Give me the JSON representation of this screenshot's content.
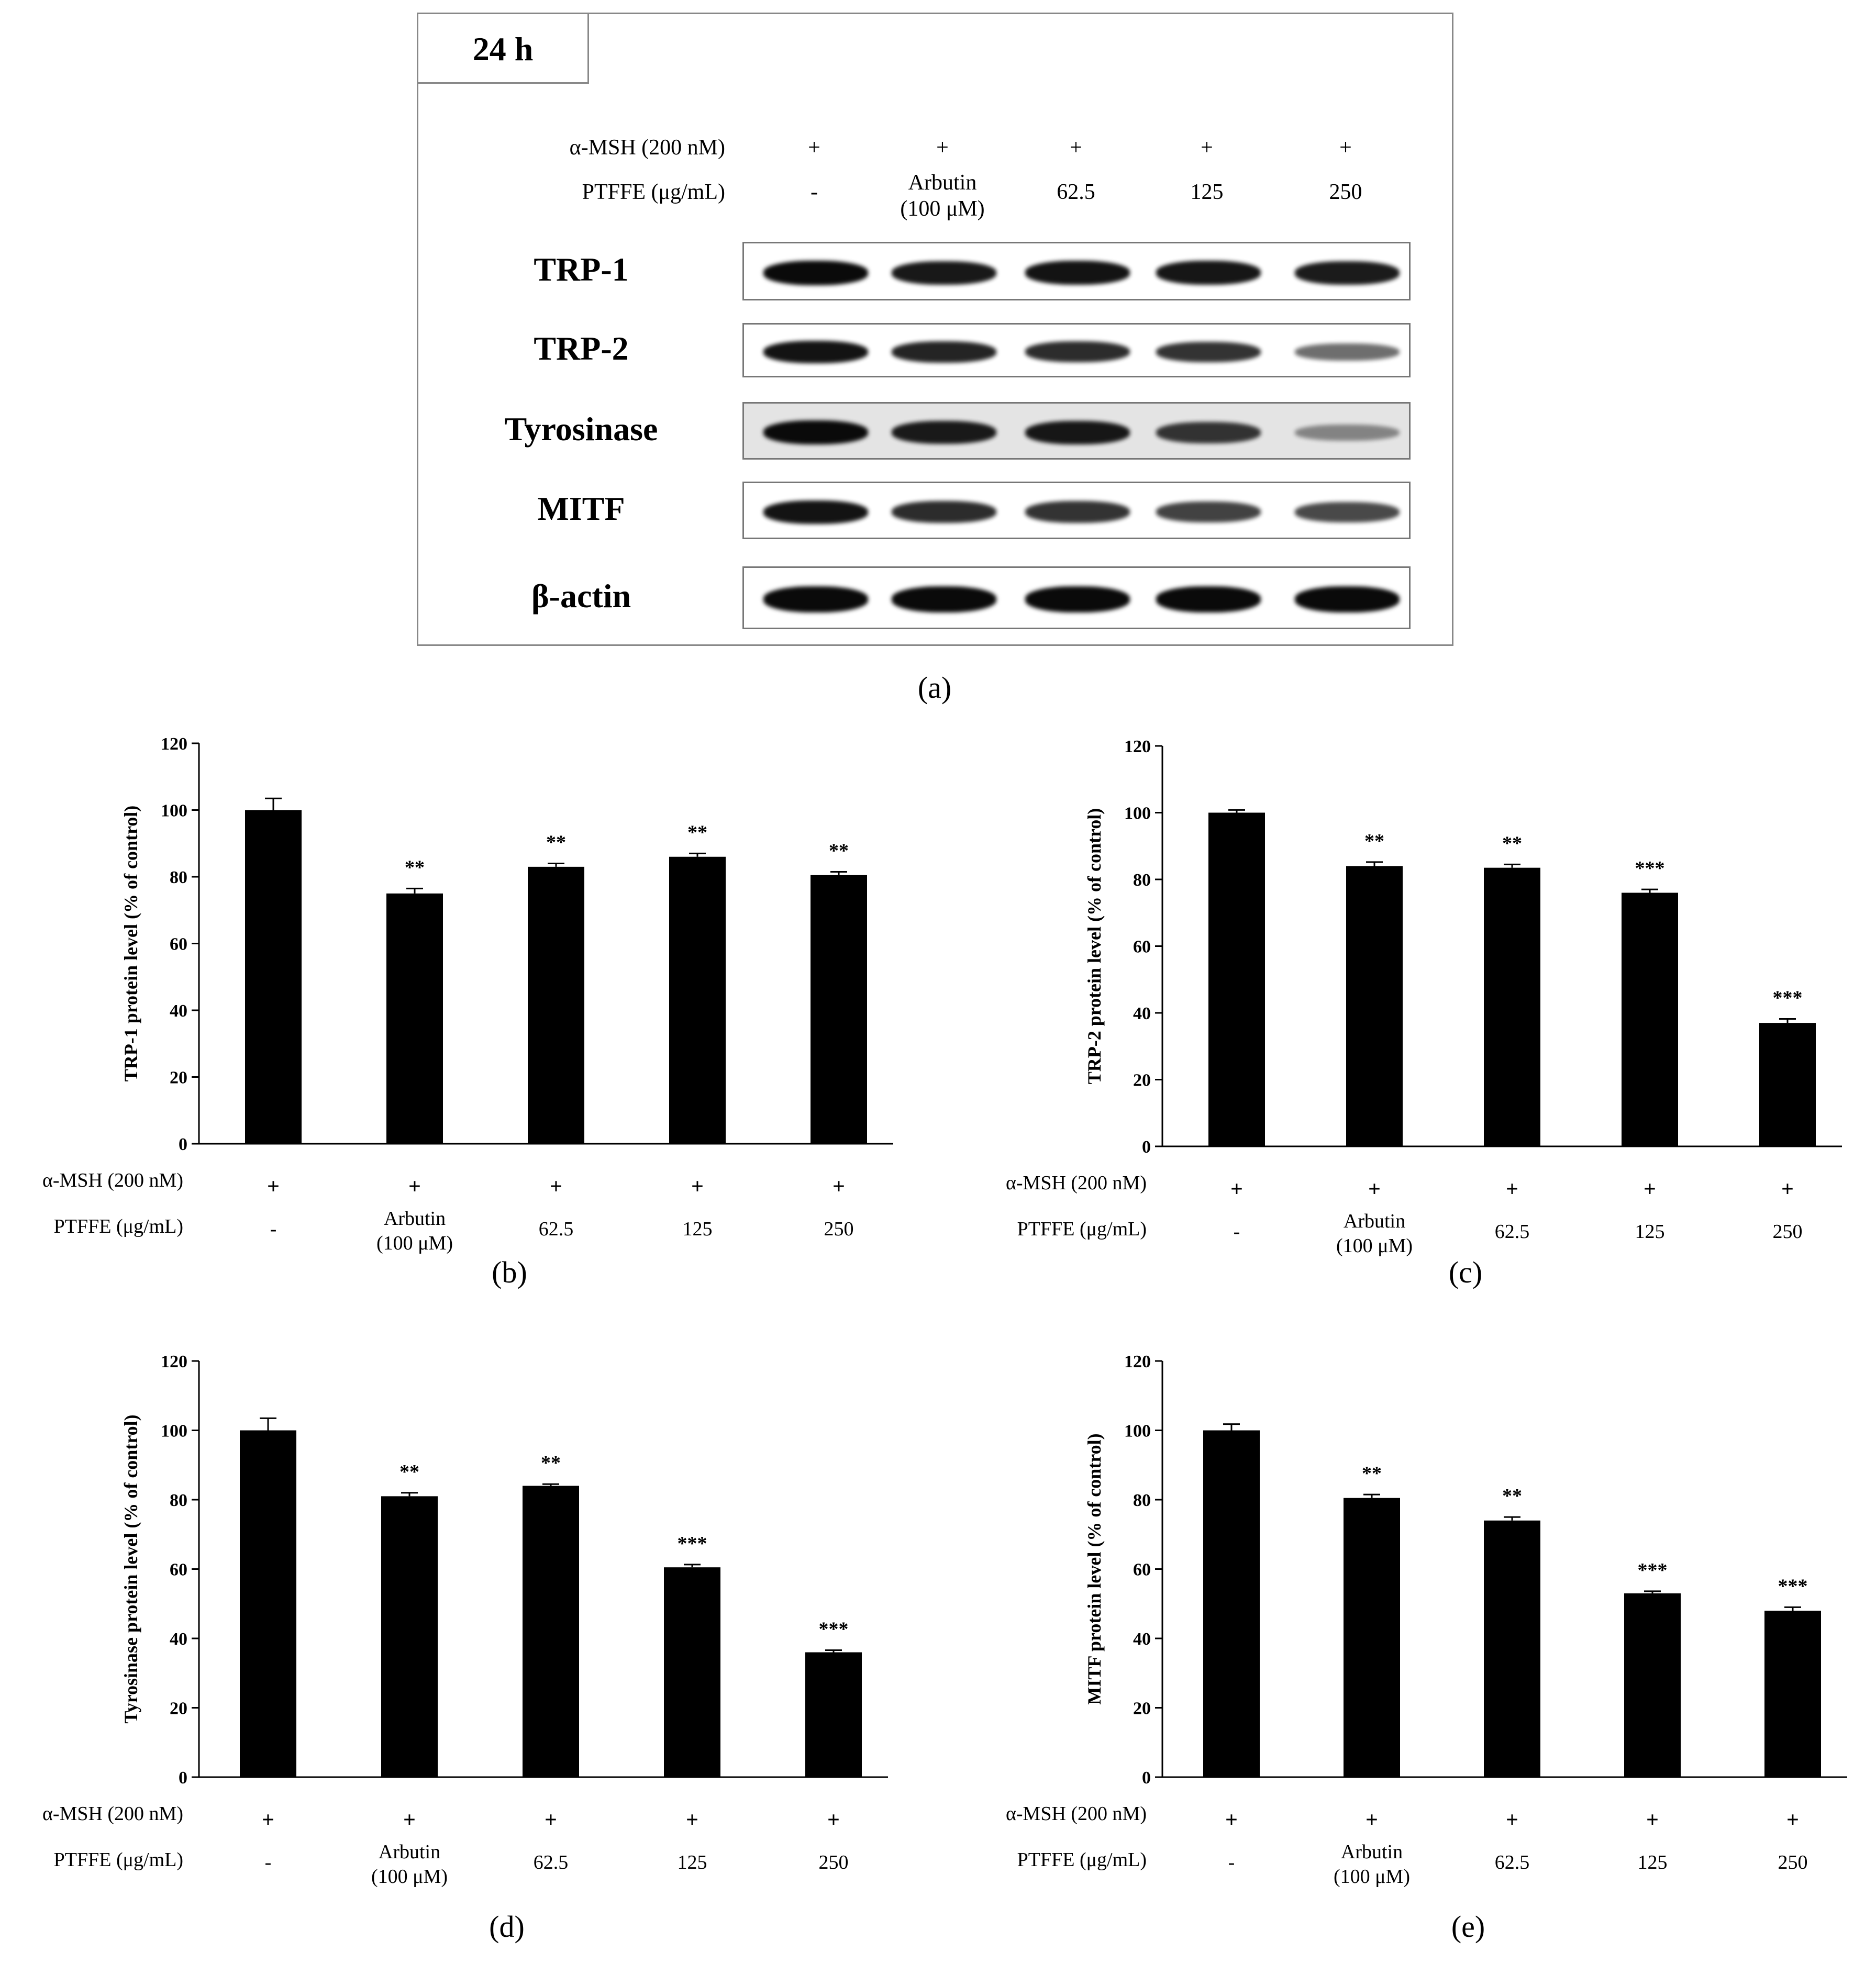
{
  "blot": {
    "time_label": "24 h",
    "row_labels": {
      "msh": "α-MSH (200 nM)",
      "ptffe": "PTFFE (μg/mL)"
    },
    "lanes": [
      {
        "msh": "+",
        "ptffe": "-"
      },
      {
        "msh": "+",
        "ptffe": "Arbutin",
        "ptffe2": "(100 μM)"
      },
      {
        "msh": "+",
        "ptffe": "62.5"
      },
      {
        "msh": "+",
        "ptffe": "125"
      },
      {
        "msh": "+",
        "ptffe": "250"
      }
    ],
    "proteins": [
      "TRP-1",
      "TRP-2",
      "Tyrosinase",
      "MITF",
      "β-actin"
    ],
    "band_intensity": [
      [
        1.0,
        0.92,
        0.95,
        0.93,
        0.9
      ],
      [
        0.95,
        0.85,
        0.82,
        0.78,
        0.45
      ],
      [
        1.0,
        0.9,
        0.92,
        0.75,
        0.25
      ],
      [
        0.95,
        0.82,
        0.78,
        0.7,
        0.65
      ],
      [
        1.0,
        1.0,
        1.0,
        1.0,
        1.0
      ]
    ],
    "panel_label": "(a)"
  },
  "conditions": {
    "msh_label": "α-MSH (200 nM)",
    "ptffe_label": "PTFFE (μg/mL)",
    "msh_values": [
      "+",
      "+",
      "+",
      "+",
      "+"
    ],
    "ptffe_values": [
      "-",
      "Arbutin",
      "62.5",
      "125",
      "250"
    ],
    "ptffe_sub": [
      "",
      "(100 μM)",
      "",
      "",
      ""
    ]
  },
  "chart_data": [
    {
      "type": "bar",
      "panel": "(b)",
      "ylabel": "TRP-1 protein level (% of control)",
      "ylim": [
        0,
        120
      ],
      "yticks": [
        0,
        20,
        40,
        60,
        80,
        100,
        120
      ],
      "values": [
        100,
        75,
        83,
        86,
        80.5
      ],
      "errors": [
        3.5,
        1.5,
        1,
        1,
        1
      ],
      "significance": [
        "",
        "**",
        "**",
        "**",
        "**"
      ]
    },
    {
      "type": "bar",
      "panel": "(c)",
      "ylabel": "TRP-2 protein level (% of control)",
      "ylim": [
        0,
        120
      ],
      "yticks": [
        0,
        20,
        40,
        60,
        80,
        100,
        120
      ],
      "values": [
        100,
        84,
        83.5,
        76,
        37
      ],
      "errors": [
        0.8,
        1.2,
        1,
        1,
        1.2
      ],
      "significance": [
        "",
        "**",
        "**",
        "***",
        "***"
      ]
    },
    {
      "type": "bar",
      "panel": "(d)",
      "ylabel": "Tyrosinase protein level (% of control)",
      "ylim": [
        0,
        120
      ],
      "yticks": [
        0,
        20,
        40,
        60,
        80,
        100,
        120
      ],
      "values": [
        100,
        81,
        84,
        60.5,
        36
      ],
      "errors": [
        3.5,
        1,
        0.5,
        0.8,
        0.6
      ],
      "significance": [
        "",
        "**",
        "**",
        "***",
        "***"
      ]
    },
    {
      "type": "bar",
      "panel": "(e)",
      "ylabel": "MITF protein level (% of control)",
      "ylim": [
        0,
        120
      ],
      "yticks": [
        0,
        20,
        40,
        60,
        80,
        100,
        120
      ],
      "values": [
        100,
        80.5,
        74,
        53,
        48
      ],
      "errors": [
        1.8,
        1,
        1,
        0.6,
        1
      ],
      "significance": [
        "",
        "**",
        "**",
        "***",
        "***"
      ]
    }
  ]
}
